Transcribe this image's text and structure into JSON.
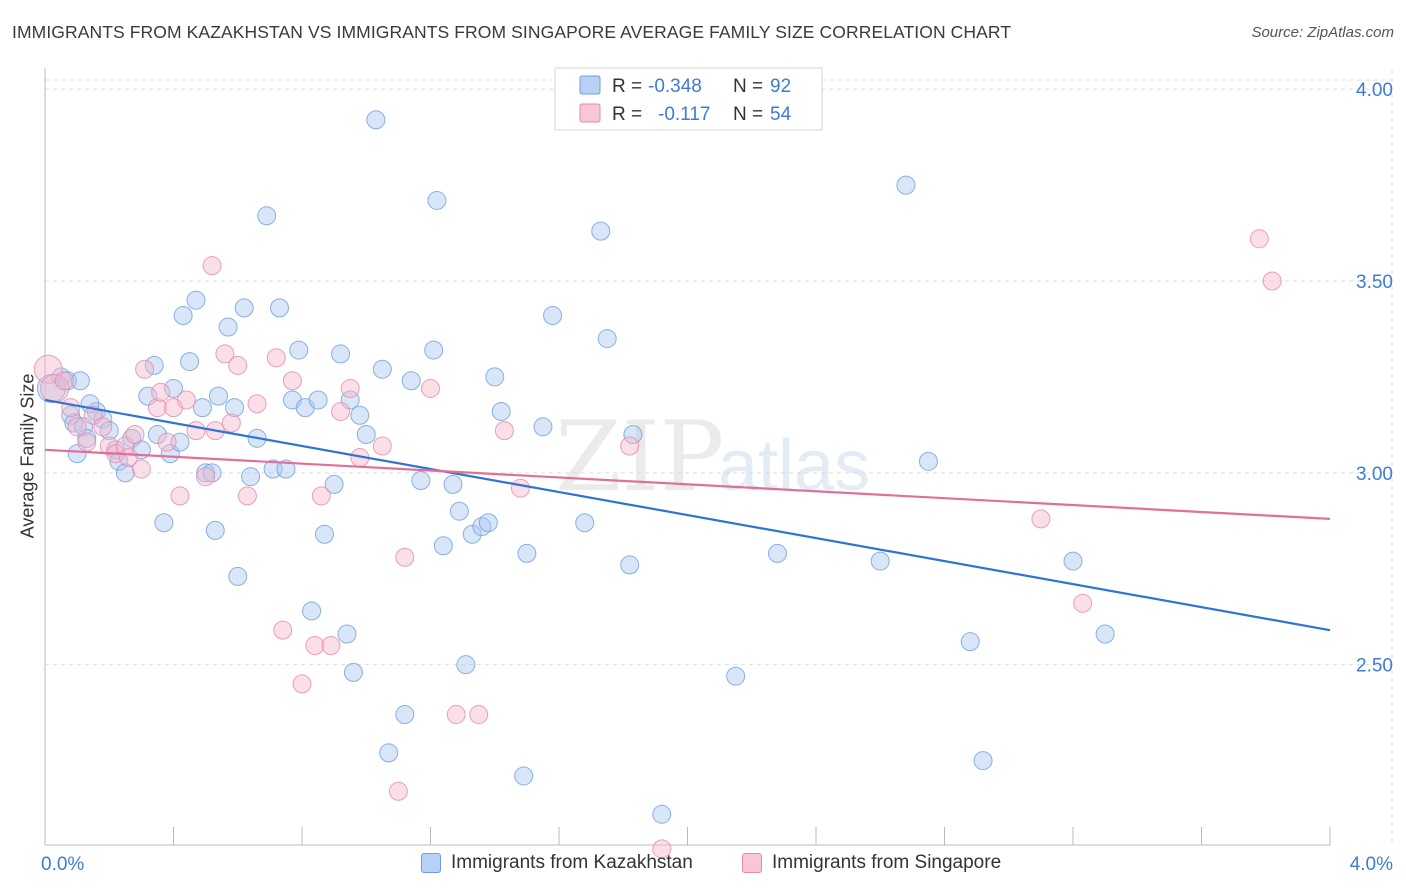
{
  "title": "IMMIGRANTS FROM KAZAKHSTAN VS IMMIGRANTS FROM SINGAPORE AVERAGE FAMILY SIZE CORRELATION CHART",
  "source": "Source: ZipAtlas.com",
  "watermark": {
    "zip": "ZIP",
    "atlas": "atlas"
  },
  "colors": {
    "kazakhstan_fill": "#a8c8f0",
    "kazakhstan_line": "#2f74d0",
    "singapore_fill": "#f7b8cc",
    "singapore_line": "#e0709a",
    "tick_label": "#3f7bd4",
    "grid": "#dddddd"
  },
  "stats_legend": {
    "rows": [
      {
        "r_label": "R =",
        "r_value": "-0.348",
        "n_label": "N =",
        "n_value": "92"
      },
      {
        "r_label": "R =",
        "r_value": "-0.117",
        "n_label": "N =",
        "n_value": "54"
      }
    ]
  },
  "bottom_legend": [
    {
      "label": "Immigrants from Kazakhstan"
    },
    {
      "label": "Immigrants from Singapore"
    }
  ],
  "chart_data": {
    "type": "scatter",
    "title": "IMMIGRANTS FROM KAZAKHSTAN VS IMMIGRANTS FROM SINGAPORE AVERAGE FAMILY SIZE CORRELATION CHART",
    "xlabel": "",
    "ylabel": "Average Family Size",
    "xlim": [
      0,
      4.0
    ],
    "ylim": [
      2.03,
      4.05
    ],
    "x_tick_labels": [
      {
        "value": 0,
        "label": "0.0%"
      },
      {
        "value": 4.0,
        "label": "4.0%"
      }
    ],
    "y_ticks": [
      {
        "value": 2.5,
        "label": "2.50"
      },
      {
        "value": 3.0,
        "label": "3.00"
      },
      {
        "value": 3.5,
        "label": "3.50"
      },
      {
        "value": 4.0,
        "label": "4.00"
      }
    ],
    "grid": true,
    "legend_position": "top-center",
    "series": [
      {
        "name": "Immigrants from Kazakhstan",
        "r": -0.348,
        "n": 92,
        "trend": {
          "x": [
            0,
            4.0
          ],
          "y": [
            3.19,
            2.59
          ]
        },
        "points": [
          [
            0.02,
            3.22
          ],
          [
            0.05,
            3.25
          ],
          [
            0.07,
            3.24
          ],
          [
            0.08,
            3.15
          ],
          [
            0.09,
            3.13
          ],
          [
            0.1,
            3.05
          ],
          [
            0.12,
            3.12
          ],
          [
            0.13,
            3.09
          ],
          [
            0.16,
            3.16
          ],
          [
            0.18,
            3.14
          ],
          [
            0.22,
            3.06
          ],
          [
            0.23,
            3.03
          ],
          [
            0.25,
            3.0
          ],
          [
            0.27,
            3.09
          ],
          [
            0.3,
            3.06
          ],
          [
            0.32,
            3.2
          ],
          [
            0.34,
            3.28
          ],
          [
            0.35,
            3.1
          ],
          [
            0.37,
            2.87
          ],
          [
            0.39,
            3.05
          ],
          [
            0.4,
            3.22
          ],
          [
            0.42,
            3.08
          ],
          [
            0.43,
            3.41
          ],
          [
            0.45,
            3.29
          ],
          [
            0.47,
            3.45
          ],
          [
            0.49,
            3.17
          ],
          [
            0.5,
            3.0
          ],
          [
            0.52,
            3.0
          ],
          [
            0.53,
            2.85
          ],
          [
            0.54,
            3.2
          ],
          [
            0.57,
            3.38
          ],
          [
            0.59,
            3.17
          ],
          [
            0.6,
            2.73
          ],
          [
            0.62,
            3.43
          ],
          [
            0.64,
            2.99
          ],
          [
            0.66,
            3.09
          ],
          [
            0.69,
            3.67
          ],
          [
            0.71,
            3.01
          ],
          [
            0.73,
            3.43
          ],
          [
            0.75,
            3.01
          ],
          [
            0.77,
            3.19
          ],
          [
            0.79,
            3.32
          ],
          [
            0.81,
            3.17
          ],
          [
            0.83,
            2.64
          ],
          [
            0.85,
            3.19
          ],
          [
            0.87,
            2.84
          ],
          [
            0.9,
            2.97
          ],
          [
            0.92,
            3.31
          ],
          [
            0.94,
            2.58
          ],
          [
            0.95,
            3.19
          ],
          [
            0.96,
            2.48
          ],
          [
            0.98,
            3.15
          ],
          [
            1.0,
            3.1
          ],
          [
            1.03,
            3.92
          ],
          [
            1.05,
            3.27
          ],
          [
            1.07,
            2.27
          ],
          [
            1.12,
            2.37
          ],
          [
            1.14,
            3.24
          ],
          [
            1.17,
            2.98
          ],
          [
            1.21,
            3.32
          ],
          [
            1.22,
            3.71
          ],
          [
            1.24,
            2.81
          ],
          [
            1.27,
            2.97
          ],
          [
            1.29,
            2.9
          ],
          [
            1.31,
            2.5
          ],
          [
            1.33,
            2.84
          ],
          [
            1.36,
            2.86
          ],
          [
            1.38,
            2.87
          ],
          [
            1.4,
            3.25
          ],
          [
            1.42,
            3.16
          ],
          [
            1.49,
            2.21
          ],
          [
            1.5,
            2.79
          ],
          [
            1.55,
            3.12
          ],
          [
            1.58,
            3.41
          ],
          [
            1.68,
            2.87
          ],
          [
            1.73,
            3.63
          ],
          [
            1.75,
            3.35
          ],
          [
            1.82,
            2.76
          ],
          [
            1.83,
            3.1
          ],
          [
            1.92,
            2.11
          ],
          [
            2.15,
            2.47
          ],
          [
            2.28,
            2.79
          ],
          [
            2.6,
            2.77
          ],
          [
            2.68,
            3.75
          ],
          [
            2.75,
            3.03
          ],
          [
            2.88,
            2.56
          ],
          [
            2.92,
            2.25
          ],
          [
            3.2,
            2.77
          ],
          [
            3.3,
            2.58
          ],
          [
            0.11,
            3.24
          ],
          [
            0.14,
            3.18
          ],
          [
            0.2,
            3.11
          ]
        ]
      },
      {
        "name": "Immigrants from Singapore",
        "r": -0.117,
        "n": 54,
        "trend": {
          "x": [
            0,
            4.0
          ],
          "y": [
            3.06,
            2.88
          ]
        },
        "points": [
          [
            0.01,
            3.27
          ],
          [
            0.03,
            3.22
          ],
          [
            0.06,
            3.24
          ],
          [
            0.08,
            3.17
          ],
          [
            0.1,
            3.12
          ],
          [
            0.13,
            3.08
          ],
          [
            0.15,
            3.15
          ],
          [
            0.18,
            3.12
          ],
          [
            0.2,
            3.07
          ],
          [
            0.22,
            3.05
          ],
          [
            0.25,
            3.07
          ],
          [
            0.28,
            3.1
          ],
          [
            0.3,
            3.01
          ],
          [
            0.31,
            3.27
          ],
          [
            0.35,
            3.17
          ],
          [
            0.36,
            3.21
          ],
          [
            0.38,
            3.08
          ],
          [
            0.4,
            3.17
          ],
          [
            0.42,
            2.94
          ],
          [
            0.44,
            3.19
          ],
          [
            0.47,
            3.11
          ],
          [
            0.5,
            2.99
          ],
          [
            0.52,
            3.54
          ],
          [
            0.53,
            3.11
          ],
          [
            0.56,
            3.31
          ],
          [
            0.58,
            3.13
          ],
          [
            0.6,
            3.28
          ],
          [
            0.63,
            2.94
          ],
          [
            0.66,
            3.18
          ],
          [
            0.72,
            3.3
          ],
          [
            0.74,
            2.59
          ],
          [
            0.77,
            3.24
          ],
          [
            0.8,
            2.45
          ],
          [
            0.84,
            2.55
          ],
          [
            0.86,
            2.94
          ],
          [
            0.89,
            2.55
          ],
          [
            0.92,
            3.16
          ],
          [
            0.95,
            3.22
          ],
          [
            0.98,
            3.04
          ],
          [
            1.05,
            3.07
          ],
          [
            1.1,
            2.17
          ],
          [
            1.12,
            2.78
          ],
          [
            1.2,
            3.22
          ],
          [
            1.28,
            2.37
          ],
          [
            1.35,
            2.37
          ],
          [
            1.43,
            3.11
          ],
          [
            1.48,
            2.96
          ],
          [
            1.82,
            3.07
          ],
          [
            1.92,
            2.02
          ],
          [
            3.1,
            2.88
          ],
          [
            3.23,
            2.66
          ],
          [
            3.78,
            3.61
          ],
          [
            3.82,
            3.5
          ],
          [
            0.26,
            3.04
          ]
        ]
      }
    ]
  }
}
